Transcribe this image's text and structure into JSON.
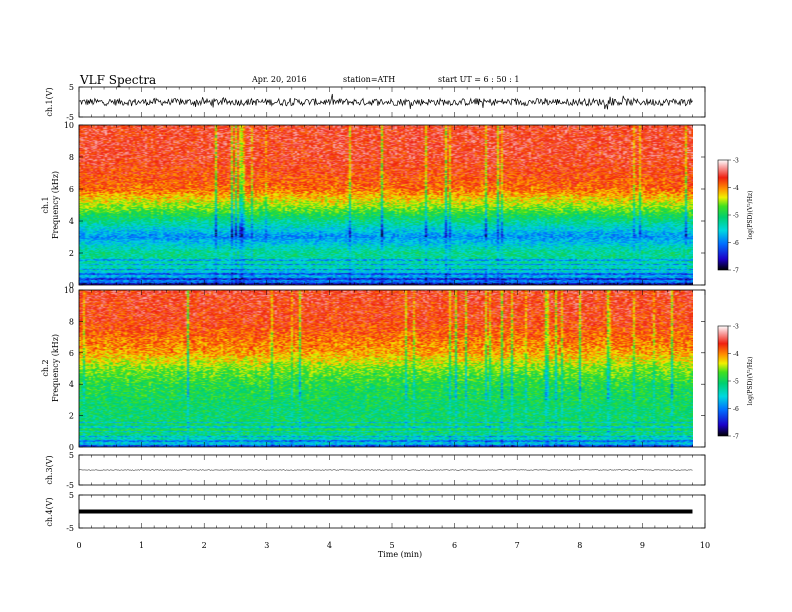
{
  "header": {
    "title": "VLF  Spectra",
    "date": "Apr. 20, 2016",
    "station": "station=ATH",
    "start": "start  UT  =   6  : 50 : 1"
  },
  "chart_data": [
    {
      "type": "line",
      "panel": "ch1",
      "ylabel": "ch.1(V)",
      "ylim": [
        -5,
        5
      ],
      "yticks": [
        "5",
        "-5"
      ],
      "xlim": [
        0,
        10
      ],
      "series": [
        {
          "values_mean": 0,
          "noise_amplitude": 1.2
        }
      ]
    },
    {
      "type": "heatmap",
      "panel": "ch1_spectrogram",
      "ylabel": "ch.1",
      "ylabel2": "Frequency  (kHz)",
      "ylim": [
        0,
        10
      ],
      "yticks": [
        "0",
        "2",
        "4",
        "6",
        "8",
        "10"
      ],
      "xlim": [
        0,
        10
      ],
      "colorbar": {
        "label": "log(PSD)(V²/Hz)",
        "range": [
          -7,
          -3
        ],
        "ticks": [
          "-3",
          "-4",
          "-5",
          "-6",
          "-7"
        ]
      },
      "profile": [
        {
          "f": 0.2,
          "v": -6.0
        },
        {
          "f": 1.0,
          "v": -5.4
        },
        {
          "f": 2.0,
          "v": -5.2
        },
        {
          "f": 3.0,
          "v": -5.9
        },
        {
          "f": 4.0,
          "v": -5.2
        },
        {
          "f": 5.0,
          "v": -4.5
        },
        {
          "f": 6.0,
          "v": -3.9
        },
        {
          "f": 8.0,
          "v": -3.6
        },
        {
          "f": 10.0,
          "v": -3.6
        }
      ]
    },
    {
      "type": "heatmap",
      "panel": "ch2_spectrogram",
      "ylabel": "ch.2",
      "ylabel2": "Frequency  (kHz)",
      "ylim": [
        0,
        10
      ],
      "yticks": [
        "0",
        "2",
        "4",
        "6",
        "8",
        "10"
      ],
      "xlim": [
        0,
        10
      ],
      "colorbar": {
        "label": "log(PSD)(V²/Hz)",
        "range": [
          -7,
          -3
        ],
        "ticks": [
          "-3",
          "-4",
          "-5",
          "-6",
          "-7"
        ]
      },
      "profile": [
        {
          "f": 0.2,
          "v": -5.6
        },
        {
          "f": 1.0,
          "v": -5.0
        },
        {
          "f": 2.0,
          "v": -5.1
        },
        {
          "f": 3.0,
          "v": -5.0
        },
        {
          "f": 4.0,
          "v": -4.9
        },
        {
          "f": 5.0,
          "v": -4.6
        },
        {
          "f": 6.0,
          "v": -4.1
        },
        {
          "f": 8.0,
          "v": -3.7
        },
        {
          "f": 10.0,
          "v": -3.6
        }
      ]
    },
    {
      "type": "line",
      "panel": "ch3",
      "ylabel": "ch.3(V)",
      "ylim": [
        -5,
        5
      ],
      "yticks": [
        "5",
        "-5"
      ],
      "xlim": [
        0,
        10
      ],
      "series": [
        {
          "values_mean": 0,
          "noise_amplitude": 0.1
        }
      ]
    },
    {
      "type": "line",
      "panel": "ch4",
      "ylabel": "ch.4(V)",
      "ylim": [
        -5,
        5
      ],
      "yticks": [
        "5",
        "-5"
      ],
      "xlim": [
        0,
        10
      ],
      "series": [
        {
          "values_mean": 0,
          "noise_amplitude": 0.3
        }
      ]
    }
  ],
  "xaxis": {
    "label": "Time  (min)",
    "ticks": [
      "0",
      "1",
      "2",
      "3",
      "4",
      "5",
      "6",
      "7",
      "8",
      "9",
      "10"
    ],
    "data_end": 9.8
  }
}
